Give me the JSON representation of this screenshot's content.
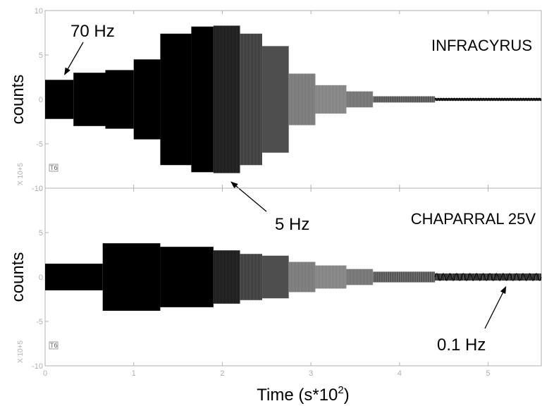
{
  "chart_data": [
    {
      "type": "line",
      "title": "INFRACYRUS",
      "ylabel": "counts",
      "y_multiplier": "X 10+5",
      "channel_tag": "T6",
      "x_ticks": [
        0,
        1,
        2,
        3,
        4,
        5
      ],
      "y_ticks": [
        -10,
        -5,
        0,
        5,
        10
      ],
      "xlim": [
        0,
        5.6
      ],
      "ylim": [
        -10,
        10
      ],
      "annotations": [
        {
          "text": "70 Hz",
          "x": 0.22,
          "y": 2.8
        },
        {
          "text": "5 Hz",
          "x": 2.1,
          "y": -9.3
        }
      ],
      "envelope_steps": [
        {
          "x_start": 0.0,
          "x_end": 0.32,
          "amplitude": 2.2,
          "shade": "#000000"
        },
        {
          "x_start": 0.32,
          "x_end": 0.68,
          "amplitude": 3.0,
          "shade": "#000000"
        },
        {
          "x_start": 0.68,
          "x_end": 1.0,
          "amplitude": 3.3,
          "shade": "#000000"
        },
        {
          "x_start": 1.0,
          "x_end": 1.3,
          "amplitude": 4.5,
          "shade": "#000000"
        },
        {
          "x_start": 1.3,
          "x_end": 1.65,
          "amplitude": 7.4,
          "shade": "#000000"
        },
        {
          "x_start": 1.65,
          "x_end": 1.9,
          "amplitude": 8.2,
          "shade": "#000000"
        },
        {
          "x_start": 1.9,
          "x_end": 2.2,
          "amplitude": 8.3,
          "shade": "#0a0a0a"
        },
        {
          "x_start": 2.2,
          "x_end": 2.45,
          "amplitude": 7.4,
          "shade": "#303030"
        },
        {
          "x_start": 2.45,
          "x_end": 2.75,
          "amplitude": 6.0,
          "shade": "#3a3a3a"
        },
        {
          "x_start": 2.75,
          "x_end": 3.05,
          "amplitude": 2.9,
          "shade": "#707070"
        },
        {
          "x_start": 3.05,
          "x_end": 3.4,
          "amplitude": 1.6,
          "shade": "#7a7a7a"
        },
        {
          "x_start": 3.4,
          "x_end": 3.7,
          "amplitude": 0.9,
          "shade": "#6a6a6a"
        },
        {
          "x_start": 3.7,
          "x_end": 4.4,
          "amplitude": 0.35,
          "shade": "#555555"
        },
        {
          "x_start": 4.4,
          "x_end": 5.6,
          "amplitude": 0.15,
          "shade": "#333333"
        }
      ]
    },
    {
      "type": "line",
      "title": "CHAPARRAL 25V",
      "ylabel": "counts",
      "y_multiplier": "X 10+5",
      "channel_tag": "T6",
      "x_ticks": [
        0,
        1,
        2,
        3,
        4,
        5
      ],
      "y_ticks": [
        -10,
        -5,
        0,
        5,
        10
      ],
      "xlim": [
        0,
        5.6
      ],
      "ylim": [
        -10,
        10
      ],
      "annotations": [
        {
          "text": "0.1 Hz",
          "x": 5.2,
          "y": -1.1
        }
      ],
      "envelope_steps": [
        {
          "x_start": 0.0,
          "x_end": 0.65,
          "amplitude": 1.5,
          "shade": "#000000"
        },
        {
          "x_start": 0.65,
          "x_end": 1.3,
          "amplitude": 3.8,
          "shade": "#000000"
        },
        {
          "x_start": 1.3,
          "x_end": 1.9,
          "amplitude": 3.4,
          "shade": "#000000"
        },
        {
          "x_start": 1.9,
          "x_end": 2.2,
          "amplitude": 3.0,
          "shade": "#0a0a0a"
        },
        {
          "x_start": 2.2,
          "x_end": 2.45,
          "amplitude": 2.6,
          "shade": "#303030"
        },
        {
          "x_start": 2.45,
          "x_end": 2.75,
          "amplitude": 2.4,
          "shade": "#3a3a3a"
        },
        {
          "x_start": 2.75,
          "x_end": 3.05,
          "amplitude": 1.7,
          "shade": "#707070"
        },
        {
          "x_start": 3.05,
          "x_end": 3.4,
          "amplitude": 1.3,
          "shade": "#7a7a7a"
        },
        {
          "x_start": 3.4,
          "x_end": 3.7,
          "amplitude": 0.9,
          "shade": "#6a6a6a"
        },
        {
          "x_start": 3.7,
          "x_end": 4.4,
          "amplitude": 0.6,
          "shade": "#555555"
        },
        {
          "x_start": 4.4,
          "x_end": 5.6,
          "amplitude": 0.4,
          "shade": "#333333"
        }
      ]
    }
  ],
  "x_axis": {
    "title_prefix": "Time (s*10",
    "title_exp": "2",
    "title_suffix": ")"
  }
}
